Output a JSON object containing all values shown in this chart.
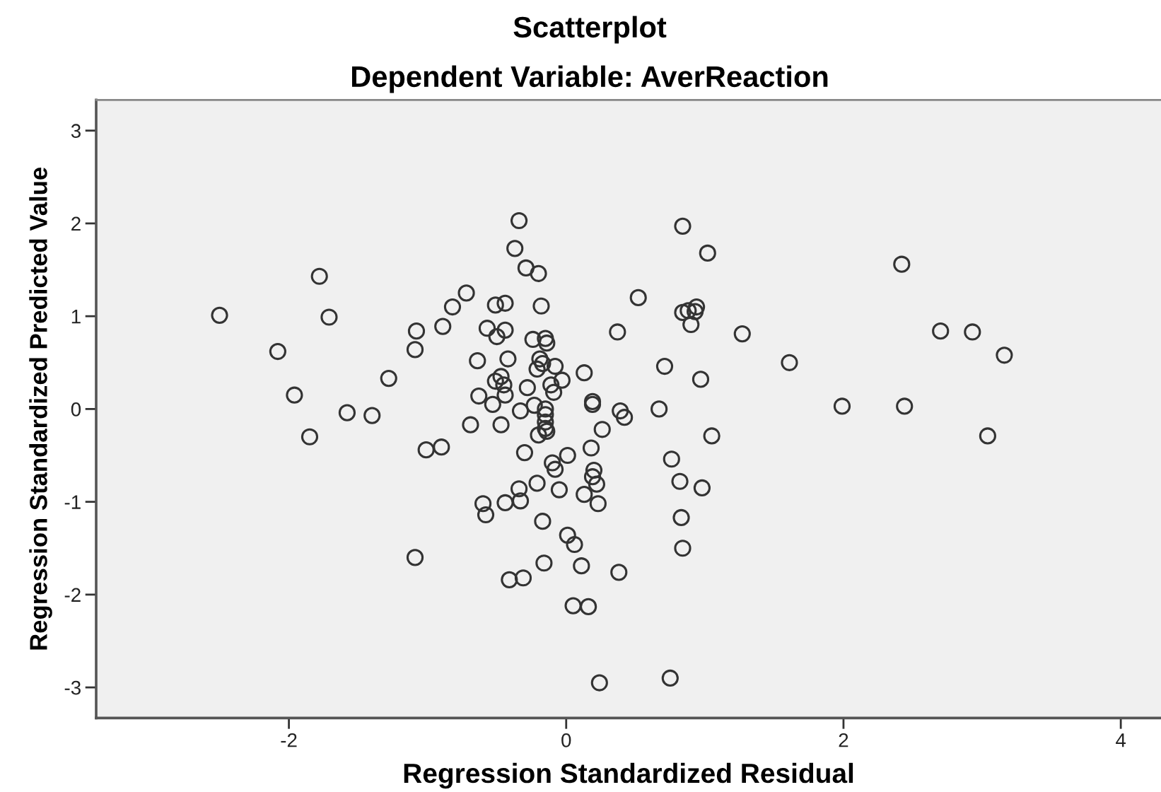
{
  "chart_data": {
    "type": "scatter",
    "title": "Scatterplot",
    "subtitle": "Dependent Variable: AverReaction",
    "xlabel": "Regression Standardized Residual",
    "ylabel": "Regression Standardized Predicted Value",
    "x": [
      -2.5,
      -2.08,
      -1.96,
      -1.85,
      -1.78,
      -1.71,
      -1.58,
      -1.4,
      -1.28,
      -1.09,
      -1.08,
      -1.09,
      -1.01,
      -0.9,
      -0.89,
      -0.82,
      -0.72,
      -0.69,
      -0.64,
      -0.63,
      -0.6,
      -0.58,
      -0.57,
      -0.53,
      -0.51,
      -0.51,
      -0.5,
      -0.47,
      -0.47,
      -0.45,
      -0.44,
      -0.44,
      -0.44,
      -0.44,
      -0.42,
      -0.41,
      -0.37,
      -0.34,
      -0.34,
      -0.33,
      -0.33,
      -0.31,
      -0.3,
      -0.29,
      -0.28,
      -0.24,
      -0.23,
      -0.21,
      -0.21,
      -0.2,
      -0.2,
      -0.19,
      -0.18,
      -0.17,
      -0.17,
      -0.16,
      -0.15,
      -0.15,
      -0.15,
      -0.15,
      -0.15,
      -0.14,
      -0.14,
      -0.11,
      -0.1,
      -0.09,
      -0.08,
      -0.08,
      -0.05,
      -0.03,
      0.01,
      0.01,
      0.05,
      0.06,
      0.11,
      0.13,
      0.13,
      0.16,
      0.18,
      0.19,
      0.19,
      0.19,
      0.2,
      0.22,
      0.23,
      0.24,
      0.26,
      0.37,
      0.38,
      0.39,
      0.42,
      0.52,
      0.67,
      0.71,
      0.75,
      0.76,
      0.82,
      0.83,
      0.84,
      0.84,
      0.84,
      0.88,
      0.9,
      0.93,
      0.94,
      0.97,
      0.98,
      1.02,
      1.05,
      1.27,
      1.61,
      1.99,
      2.42,
      2.44,
      2.7,
      2.93,
      3.04,
      3.16
    ],
    "values": [
      1.01,
      0.62,
      0.15,
      -0.3,
      1.43,
      0.99,
      -0.04,
      -0.07,
      0.33,
      0.64,
      0.84,
      -1.6,
      -0.44,
      -0.41,
      0.89,
      1.1,
      1.25,
      -0.17,
      0.52,
      0.14,
      -1.02,
      -1.14,
      0.87,
      0.05,
      1.12,
      0.3,
      0.78,
      0.35,
      -0.17,
      0.26,
      1.14,
      0.85,
      0.15,
      -1.01,
      0.54,
      -1.84,
      1.73,
      2.03,
      -0.86,
      -0.02,
      -0.99,
      -1.82,
      -0.47,
      1.52,
      0.23,
      0.75,
      0.04,
      0.43,
      -0.8,
      1.46,
      -0.28,
      0.54,
      1.11,
      0.49,
      -1.21,
      -1.66,
      0.76,
      0.0,
      -0.06,
      -0.14,
      -0.21,
      0.71,
      -0.24,
      0.26,
      -0.58,
      0.18,
      0.46,
      -0.65,
      -0.87,
      0.31,
      -0.5,
      -1.36,
      -2.12,
      -1.46,
      -1.69,
      0.39,
      -0.92,
      -2.13,
      -0.42,
      0.08,
      0.05,
      -0.73,
      -0.66,
      -0.81,
      -1.02,
      -2.95,
      -0.22,
      0.83,
      -1.76,
      -0.02,
      -0.09,
      1.2,
      0.0,
      0.46,
      -2.9,
      -0.54,
      -0.78,
      -1.17,
      1.97,
      1.04,
      -1.5,
      1.06,
      0.91,
      1.05,
      1.1,
      0.32,
      -0.85,
      1.68,
      -0.29,
      0.81,
      0.5,
      0.03,
      1.56,
      0.03,
      0.84,
      0.83,
      -0.29,
      0.58
    ],
    "color": "#333333",
    "marker": "circle",
    "xlim": [
      -3.39,
      4.29
    ],
    "ylim": [
      -3.33,
      3.33
    ],
    "xticks": [
      -2,
      0,
      2,
      4
    ],
    "yticks": [
      -3,
      -2,
      -1,
      0,
      1,
      2,
      3
    ]
  }
}
